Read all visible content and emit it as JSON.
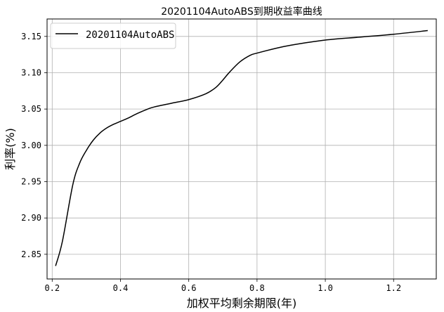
{
  "chart_data": {
    "type": "line",
    "title": "20201104AutoABS到期收益率曲线",
    "xlabel": "加权平均剩余期限(年)",
    "ylabel": "利率(%)",
    "xlim": [
      0.185,
      1.325
    ],
    "ylim": [
      2.816,
      3.174
    ],
    "xticks": [
      "0.2",
      "0.4",
      "0.6",
      "0.8",
      "1.0",
      "1.2"
    ],
    "yticks": [
      "2.85",
      "2.90",
      "2.95",
      "3.00",
      "3.05",
      "3.10",
      "3.15"
    ],
    "grid": true,
    "legend_position": "top-left",
    "series": [
      {
        "name": "20201104AutoABS",
        "color": "#000000",
        "x": [
          0.21,
          0.23,
          0.26,
          0.28,
          0.3,
          0.32,
          0.34,
          0.36,
          0.38,
          0.4,
          0.42,
          0.45,
          0.48,
          0.5,
          0.55,
          0.6,
          0.65,
          0.68,
          0.7,
          0.72,
          0.75,
          0.78,
          0.8,
          0.85,
          0.9,
          1.0,
          1.1,
          1.2,
          1.3
        ],
        "y": [
          2.834,
          2.868,
          2.945,
          2.975,
          2.993,
          3.007,
          3.017,
          3.024,
          3.029,
          3.033,
          3.037,
          3.044,
          3.05,
          3.053,
          3.058,
          3.063,
          3.071,
          3.08,
          3.09,
          3.101,
          3.115,
          3.124,
          3.127,
          3.133,
          3.138,
          3.145,
          3.149,
          3.153,
          3.158
        ]
      }
    ]
  }
}
